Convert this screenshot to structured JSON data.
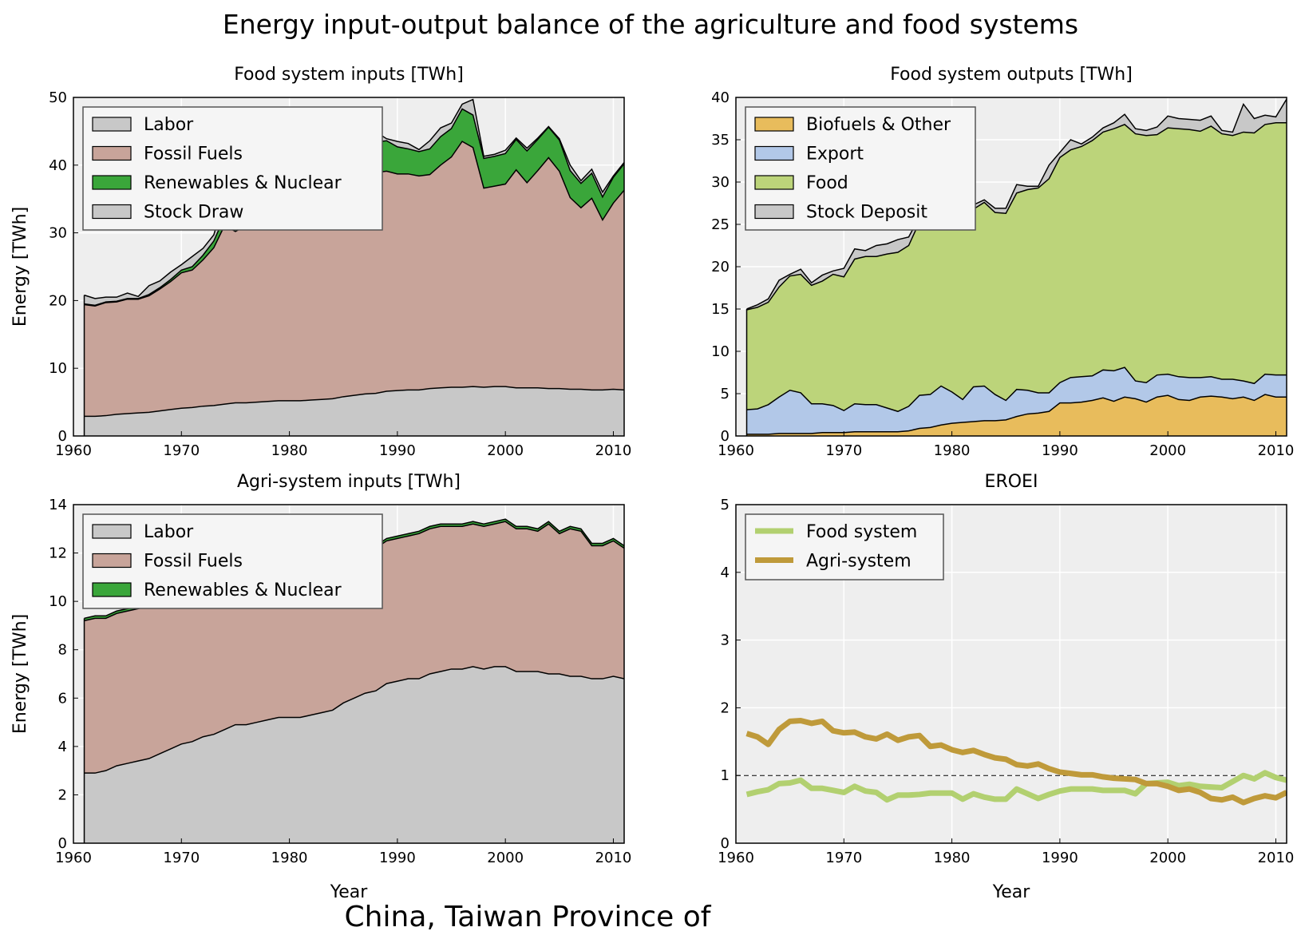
{
  "title": "Energy input-output balance of the agriculture and food systems",
  "subtitle": "China, Taiwan Province of",
  "colors": {
    "labor": "#c8c8c8",
    "fossil": "#c8a49a",
    "renewables": "#3aa63a",
    "stock": "#c8c8c8",
    "biofuels": "#e8bc5c",
    "export": "#b2c8e8",
    "food": "#bcd47a",
    "eroei_food": "#b2d070",
    "eroei_agri": "#bf9a3a",
    "axes_bg": "#eeeeee"
  },
  "chart_data": [
    {
      "type": "area",
      "stacked": true,
      "title": "Food system inputs [TWh]",
      "xlabel": "",
      "ylabel": "Energy [TWh]",
      "xlim": [
        1960,
        2011
      ],
      "ylim": [
        0,
        50
      ],
      "xticks": [
        1960,
        1970,
        1980,
        1990,
        2000,
        2010
      ],
      "yticks": [
        0,
        10,
        20,
        30,
        40,
        50
      ],
      "grid": true,
      "legend": "top-left",
      "x": [
        1961,
        1962,
        1963,
        1964,
        1965,
        1966,
        1967,
        1968,
        1969,
        1970,
        1971,
        1972,
        1973,
        1974,
        1975,
        1976,
        1977,
        1978,
        1979,
        1980,
        1981,
        1982,
        1983,
        1984,
        1985,
        1986,
        1987,
        1988,
        1989,
        1990,
        1991,
        1992,
        1993,
        1994,
        1995,
        1996,
        1997,
        1998,
        1999,
        2000,
        2001,
        2002,
        2003,
        2004,
        2005,
        2006,
        2007,
        2008,
        2009,
        2010,
        2011
      ],
      "series": [
        {
          "name": "Labor",
          "color": "#c8c8c8",
          "values": [
            2.9,
            2.9,
            3.0,
            3.2,
            3.3,
            3.4,
            3.5,
            3.7,
            3.9,
            4.1,
            4.2,
            4.4,
            4.5,
            4.7,
            4.9,
            4.9,
            5.0,
            5.1,
            5.2,
            5.2,
            5.2,
            5.3,
            5.4,
            5.5,
            5.8,
            6.0,
            6.2,
            6.3,
            6.6,
            6.7,
            6.8,
            6.8,
            7.0,
            7.1,
            7.2,
            7.2,
            7.3,
            7.2,
            7.3,
            7.3,
            7.1,
            7.1,
            7.1,
            7.0,
            7.0,
            6.9,
            6.9,
            6.8,
            6.8,
            6.9,
            6.8
          ]
        },
        {
          "name": "Fossil Fuels",
          "color": "#c8a49a",
          "values": [
            16.5,
            16.3,
            16.7,
            16.6,
            16.9,
            16.8,
            17.2,
            18.0,
            18.9,
            20.0,
            20.3,
            21.6,
            23.3,
            26.4,
            25.3,
            26.2,
            26.2,
            27.2,
            28.3,
            28.8,
            29.2,
            28.4,
            29.8,
            31.8,
            30.2,
            27.8,
            32.2,
            32.6,
            32.5,
            32.0,
            31.9,
            31.6,
            31.6,
            32.9,
            34.0,
            36.3,
            35.3,
            29.4,
            29.6,
            29.9,
            32.2,
            30.3,
            32.1,
            34.1,
            32.1,
            28.3,
            26.8,
            28.3,
            25.1,
            27.5,
            29.5
          ]
        },
        {
          "name": "Renewables & Nuclear",
          "color": "#3aa63a",
          "values": [
            0.1,
            0.1,
            0.1,
            0.1,
            0.1,
            0.1,
            0.2,
            0.2,
            0.3,
            0.4,
            0.5,
            0.7,
            1.0,
            1.3,
            1.8,
            2.2,
            2.6,
            2.9,
            3.1,
            3.3,
            3.3,
            3.5,
            3.6,
            3.5,
            3.7,
            4.0,
            4.2,
            4.5,
            4.5,
            4.0,
            3.7,
            3.6,
            3.8,
            4.2,
            4.2,
            4.8,
            4.8,
            4.4,
            4.4,
            4.5,
            4.5,
            4.7,
            4.6,
            4.5,
            4.6,
            4.0,
            3.6,
            3.7,
            3.4,
            3.8,
            3.9
          ]
        },
        {
          "name": "Stock Draw",
          "color": "#c8c8c8",
          "values": [
            1.3,
            1.0,
            0.7,
            0.6,
            0.8,
            0.3,
            1.3,
            1.0,
            1.1,
            0.8,
            1.5,
            1.0,
            0.9,
            2.8,
            2.1,
            2.0,
            2.3,
            1.4,
            1.5,
            1.3,
            1.7,
            1.2,
            1.6,
            1.0,
            1.4,
            0.1,
            0.5,
            1.5,
            0.3,
            0.8,
            0.8,
            0.3,
            1.2,
            1.3,
            0.8,
            0.7,
            2.3,
            0.3,
            0.3,
            0.5,
            0.2,
            0.4,
            0.2,
            0.1,
            0.2,
            0.8,
            0.4,
            0.6,
            0.7,
            0.2,
            0.2
          ]
        }
      ]
    },
    {
      "type": "area",
      "stacked": true,
      "title": "Food system outputs [TWh]",
      "xlabel": "",
      "ylabel": "",
      "xlim": [
        1960,
        2011
      ],
      "ylim": [
        0,
        40
      ],
      "xticks": [
        1960,
        1970,
        1980,
        1990,
        2000,
        2010
      ],
      "yticks": [
        0,
        5,
        10,
        15,
        20,
        25,
        30,
        35,
        40
      ],
      "grid": true,
      "legend": "top-left",
      "x": [
        1961,
        1962,
        1963,
        1964,
        1965,
        1966,
        1967,
        1968,
        1969,
        1970,
        1971,
        1972,
        1973,
        1974,
        1975,
        1976,
        1977,
        1978,
        1979,
        1980,
        1981,
        1982,
        1983,
        1984,
        1985,
        1986,
        1987,
        1988,
        1989,
        1990,
        1991,
        1992,
        1993,
        1994,
        1995,
        1996,
        1997,
        1998,
        1999,
        2000,
        2001,
        2002,
        2003,
        2004,
        2005,
        2006,
        2007,
        2008,
        2009,
        2010,
        2011
      ],
      "series": [
        {
          "name": "Biofuels & Other",
          "color": "#e8bc5c",
          "values": [
            0.2,
            0.2,
            0.2,
            0.3,
            0.3,
            0.3,
            0.3,
            0.4,
            0.4,
            0.4,
            0.5,
            0.5,
            0.5,
            0.5,
            0.5,
            0.6,
            0.9,
            1.0,
            1.3,
            1.5,
            1.6,
            1.7,
            1.8,
            1.8,
            1.9,
            2.3,
            2.6,
            2.7,
            2.9,
            3.9,
            3.9,
            4.0,
            4.2,
            4.5,
            4.1,
            4.6,
            4.4,
            4.0,
            4.6,
            4.8,
            4.3,
            4.2,
            4.6,
            4.7,
            4.6,
            4.4,
            4.6,
            4.2,
            4.9,
            4.6,
            4.6
          ]
        },
        {
          "name": "Export",
          "color": "#b2c8e8",
          "values": [
            2.9,
            3.0,
            3.5,
            4.3,
            5.1,
            4.8,
            3.5,
            3.4,
            3.2,
            2.6,
            3.3,
            3.2,
            3.2,
            2.8,
            2.4,
            2.9,
            3.9,
            3.9,
            4.6,
            3.7,
            2.7,
            4.1,
            4.1,
            3.1,
            2.3,
            3.2,
            2.8,
            2.4,
            2.2,
            2.4,
            3.0,
            3.0,
            2.9,
            3.3,
            3.6,
            3.5,
            2.1,
            2.3,
            2.6,
            2.5,
            2.7,
            2.7,
            2.3,
            2.3,
            2.1,
            2.3,
            1.9,
            2.0,
            2.4,
            2.6,
            2.6
          ]
        },
        {
          "name": "Food",
          "color": "#bcd47a",
          "values": [
            11.8,
            12.0,
            12.1,
            13.0,
            13.5,
            14.0,
            14.0,
            14.5,
            15.5,
            15.8,
            17.1,
            17.5,
            17.5,
            18.2,
            18.8,
            19.0,
            20.5,
            20.7,
            20.6,
            21.5,
            21.4,
            21.0,
            21.7,
            21.5,
            22.1,
            23.2,
            23.7,
            24.2,
            25.3,
            26.6,
            26.9,
            27.2,
            27.8,
            28.1,
            28.6,
            28.7,
            29.2,
            29.2,
            28.4,
            29.1,
            29.3,
            29.3,
            29.1,
            29.6,
            29.0,
            28.8,
            29.4,
            29.6,
            29.5,
            29.8,
            29.8
          ]
        },
        {
          "name": "Stock Deposit",
          "color": "#c8c8c8",
          "values": [
            0.1,
            0.3,
            0.4,
            0.8,
            0.2,
            0.6,
            0.3,
            0.7,
            0.4,
            1.0,
            1.2,
            0.7,
            1.3,
            1.2,
            1.5,
            1.0,
            0.6,
            1.2,
            1.6,
            1.2,
            0.3,
            0.5,
            0.3,
            0.5,
            0.6,
            1.0,
            0.4,
            0.2,
            1.6,
            0.6,
            1.2,
            0.3,
            0.4,
            0.5,
            0.7,
            1.2,
            0.6,
            0.6,
            0.9,
            1.4,
            1.2,
            1.2,
            1.3,
            1.2,
            0.4,
            0.4,
            3.3,
            1.7,
            1.1,
            0.7,
            2.8
          ]
        }
      ]
    },
    {
      "type": "area",
      "stacked": true,
      "title": "Agri-system inputs [TWh]",
      "xlabel": "Year",
      "ylabel": "Energy [TWh]",
      "xlim": [
        1960,
        2011
      ],
      "ylim": [
        0,
        14
      ],
      "xticks": [
        1960,
        1970,
        1980,
        1990,
        2000,
        2010
      ],
      "yticks": [
        0,
        2,
        4,
        6,
        8,
        10,
        12,
        14
      ],
      "grid": true,
      "legend": "top-left",
      "x": [
        1961,
        1962,
        1963,
        1964,
        1965,
        1966,
        1967,
        1968,
        1969,
        1970,
        1971,
        1972,
        1973,
        1974,
        1975,
        1976,
        1977,
        1978,
        1979,
        1980,
        1981,
        1982,
        1983,
        1984,
        1985,
        1986,
        1987,
        1988,
        1989,
        1990,
        1991,
        1992,
        1993,
        1994,
        1995,
        1996,
        1997,
        1998,
        1999,
        2000,
        2001,
        2002,
        2003,
        2004,
        2005,
        2006,
        2007,
        2008,
        2009,
        2010,
        2011
      ],
      "series": [
        {
          "name": "Labor",
          "color": "#c8c8c8",
          "values": [
            2.9,
            2.9,
            3.0,
            3.2,
            3.3,
            3.4,
            3.5,
            3.7,
            3.9,
            4.1,
            4.2,
            4.4,
            4.5,
            4.7,
            4.9,
            4.9,
            5.0,
            5.1,
            5.2,
            5.2,
            5.2,
            5.3,
            5.4,
            5.5,
            5.8,
            6.0,
            6.2,
            6.3,
            6.6,
            6.7,
            6.8,
            6.8,
            7.0,
            7.1,
            7.2,
            7.2,
            7.3,
            7.2,
            7.3,
            7.3,
            7.1,
            7.1,
            7.1,
            7.0,
            7.0,
            6.9,
            6.9,
            6.8,
            6.8,
            6.9,
            6.8
          ]
        },
        {
          "name": "Fossil Fuels",
          "color": "#c8a49a",
          "values": [
            6.3,
            6.4,
            6.3,
            6.3,
            6.3,
            6.3,
            6.3,
            6.3,
            6.4,
            6.3,
            6.3,
            6.3,
            6.3,
            6.3,
            6.3,
            6.3,
            6.3,
            6.3,
            6.3,
            6.2,
            6.2,
            6.2,
            6.1,
            6.1,
            6.0,
            5.9,
            5.9,
            5.9,
            5.9,
            5.9,
            5.9,
            6.0,
            6.0,
            6.0,
            5.9,
            5.9,
            5.9,
            5.9,
            5.9,
            6.0,
            5.9,
            5.9,
            5.8,
            6.2,
            5.8,
            6.1,
            6.0,
            5.5,
            5.5,
            5.6,
            5.4
          ]
        },
        {
          "name": "Renewables & Nuclear",
          "color": "#3aa63a",
          "values": [
            0.1,
            0.1,
            0.1,
            0.1,
            0.1,
            0.1,
            0.1,
            0.1,
            0.1,
            0.1,
            0.1,
            0.1,
            0.1,
            0.1,
            0.1,
            0.1,
            0.1,
            0.1,
            0.1,
            0.1,
            0.1,
            0.1,
            0.1,
            0.1,
            0.1,
            0.1,
            0.1,
            0.1,
            0.1,
            0.1,
            0.1,
            0.1,
            0.1,
            0.1,
            0.1,
            0.1,
            0.1,
            0.1,
            0.1,
            0.1,
            0.1,
            0.1,
            0.1,
            0.1,
            0.1,
            0.1,
            0.1,
            0.1,
            0.1,
            0.1,
            0.1
          ]
        }
      ]
    },
    {
      "type": "line",
      "title": "EROEI",
      "xlabel": "Year",
      "ylabel": "",
      "xlim": [
        1960,
        2011
      ],
      "ylim": [
        0,
        5
      ],
      "xticks": [
        1960,
        1970,
        1980,
        1990,
        2000,
        2010
      ],
      "yticks": [
        0,
        1,
        2,
        3,
        4,
        5
      ],
      "grid": true,
      "legend": "top-left",
      "reference_line": 1,
      "x": [
        1961,
        1962,
        1963,
        1964,
        1965,
        1966,
        1967,
        1968,
        1969,
        1970,
        1971,
        1972,
        1973,
        1974,
        1975,
        1976,
        1977,
        1978,
        1979,
        1980,
        1981,
        1982,
        1983,
        1984,
        1985,
        1986,
        1987,
        1988,
        1989,
        1990,
        1991,
        1992,
        1993,
        1994,
        1995,
        1996,
        1997,
        1998,
        1999,
        2000,
        2001,
        2002,
        2003,
        2004,
        2005,
        2006,
        2007,
        2008,
        2009,
        2010,
        2011
      ],
      "series": [
        {
          "name": "Food system",
          "color": "#b2d070",
          "values": [
            0.72,
            0.76,
            0.79,
            0.88,
            0.89,
            0.93,
            0.81,
            0.81,
            0.78,
            0.75,
            0.84,
            0.77,
            0.75,
            0.64,
            0.71,
            0.71,
            0.72,
            0.74,
            0.74,
            0.74,
            0.65,
            0.73,
            0.68,
            0.65,
            0.65,
            0.8,
            0.73,
            0.66,
            0.72,
            0.77,
            0.8,
            0.8,
            0.8,
            0.78,
            0.78,
            0.78,
            0.73,
            0.88,
            0.89,
            0.9,
            0.85,
            0.87,
            0.84,
            0.83,
            0.82,
            0.91,
            1.0,
            0.95,
            1.04,
            0.97,
            0.93
          ]
        },
        {
          "name": "Agri-system",
          "color": "#bf9a3a",
          "values": [
            1.62,
            1.57,
            1.46,
            1.68,
            1.8,
            1.81,
            1.77,
            1.8,
            1.66,
            1.63,
            1.64,
            1.57,
            1.54,
            1.61,
            1.52,
            1.57,
            1.59,
            1.43,
            1.45,
            1.38,
            1.34,
            1.37,
            1.31,
            1.26,
            1.24,
            1.16,
            1.14,
            1.17,
            1.1,
            1.05,
            1.03,
            1.01,
            1.01,
            0.98,
            0.96,
            0.95,
            0.94,
            0.88,
            0.88,
            0.84,
            0.78,
            0.8,
            0.75,
            0.66,
            0.64,
            0.68,
            0.6,
            0.66,
            0.7,
            0.67,
            0.75
          ]
        }
      ]
    }
  ]
}
